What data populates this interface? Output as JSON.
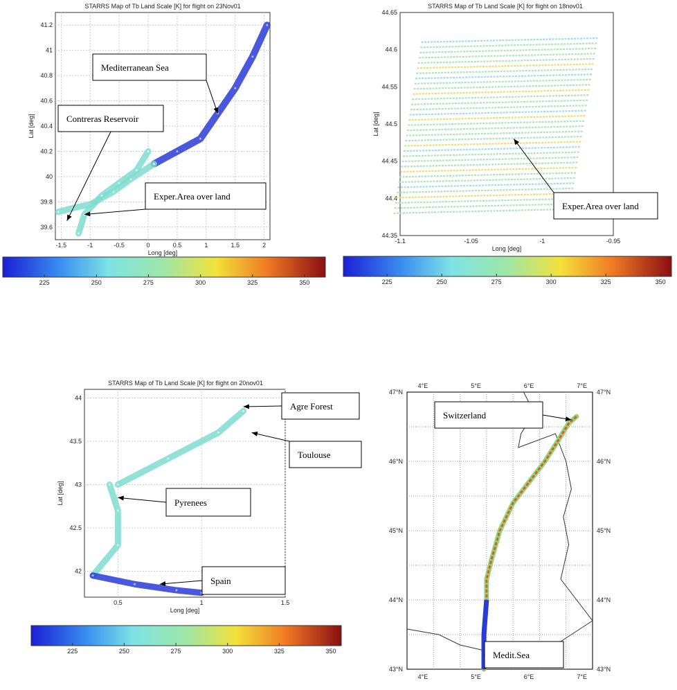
{
  "colors": {
    "cold": "#2a3bd8",
    "mid": "#7fdccf",
    "warm": "#f0d83a",
    "hot": "#d8382a"
  },
  "chart_data": [
    {
      "type": "scatter",
      "title": "STARRS Map of Tb Land Scale [K] for flight on 23Nov01",
      "xlabel": "Long [deg]",
      "ylabel": "Lat [deg]",
      "xlim": [
        -1.6,
        2.1
      ],
      "ylim": [
        39.5,
        41.3
      ],
      "xticks": [
        -1.5,
        -1,
        -0.5,
        0,
        0.5,
        1,
        1.5,
        2
      ],
      "yticks": [
        39.6,
        39.8,
        40,
        40.2,
        40.4,
        40.6,
        40.8,
        41,
        41.2
      ],
      "grid": true,
      "colorbar": {
        "min": 205,
        "max": 360,
        "ticks": [
          225,
          250,
          275,
          300,
          325,
          350
        ]
      },
      "series": [
        {
          "level": "cold",
          "points": [
            [
              0.1,
              40.1
            ],
            [
              0.5,
              40.2
            ],
            [
              0.9,
              40.3
            ],
            [
              1.2,
              40.5
            ],
            [
              1.5,
              40.7
            ],
            [
              1.8,
              40.95
            ],
            [
              2.05,
              41.2
            ]
          ]
        },
        {
          "level": "mid",
          "points": [
            [
              -1.55,
              39.72
            ],
            [
              -1.3,
              39.75
            ],
            [
              -1.0,
              39.78
            ],
            [
              -0.6,
              39.88
            ],
            [
              -0.3,
              39.98
            ],
            [
              0.1,
              40.1
            ]
          ]
        },
        {
          "level": "mid",
          "points": [
            [
              -1.2,
              39.55
            ],
            [
              -1.1,
              39.7
            ],
            [
              -0.8,
              39.85
            ],
            [
              -0.5,
              39.95
            ],
            [
              -0.2,
              40.05
            ],
            [
              0.0,
              40.2
            ]
          ]
        }
      ],
      "annotations": [
        {
          "text": "Mediterranean Sea",
          "target": [
            1.2,
            40.5
          ]
        },
        {
          "text": "Contreras Reservoir",
          "target": [
            -1.4,
            39.65
          ]
        },
        {
          "text": "Exper.Area over land",
          "target": [
            -1.1,
            39.7
          ]
        }
      ]
    },
    {
      "type": "scatter",
      "title": "STARRS Map of Tb Land Scale [K] for flight on 18nov01",
      "xlabel": "Long [deg]",
      "ylabel": "Lat [deg]",
      "xlim": [
        -1.1,
        -0.95
      ],
      "ylim": [
        44.35,
        44.65
      ],
      "xticks": [
        -1.1,
        -1.05,
        -1,
        -0.95
      ],
      "yticks": [
        44.35,
        44.4,
        44.45,
        44.5,
        44.55,
        44.6,
        44.65
      ],
      "grid": false,
      "colorbar": {
        "min": 205,
        "max": 355,
        "ticks": [
          225,
          250,
          275,
          300,
          325,
          350
        ]
      },
      "region": {
        "lon": [
          -1.09,
          -0.97
        ],
        "lat": [
          44.38,
          44.61
        ]
      },
      "annotations": [
        {
          "text": "Exper.Area over land",
          "target": [
            -1.02,
            44.48
          ]
        }
      ]
    },
    {
      "type": "scatter",
      "title": "STARRS Map of Tb Land Scale [K] for flight on 20nov01",
      "xlabel": "Long [deg]",
      "ylabel": "Lat [deg]",
      "xlim": [
        0.3,
        1.5
      ],
      "ylim": [
        41.7,
        44.1
      ],
      "xticks": [
        0.5,
        1,
        1.5
      ],
      "yticks": [
        42,
        42.5,
        43,
        43.5,
        44
      ],
      "grid": true,
      "colorbar": {
        "min": 205,
        "max": 355,
        "ticks": [
          225,
          250,
          275,
          300,
          325,
          350
        ]
      },
      "series": [
        {
          "level": "mid",
          "points": [
            [
              0.45,
              43.0
            ],
            [
              0.5,
              42.7
            ],
            [
              0.5,
              42.3
            ],
            [
              0.35,
              41.95
            ]
          ]
        },
        {
          "level": "mid",
          "points": [
            [
              0.5,
              43.0
            ],
            [
              0.8,
              43.3
            ],
            [
              1.1,
              43.6
            ],
            [
              1.25,
              43.85
            ]
          ]
        },
        {
          "level": "cold",
          "points": [
            [
              0.35,
              41.95
            ],
            [
              0.6,
              41.85
            ],
            [
              0.85,
              41.78
            ],
            [
              1.0,
              41.75
            ]
          ]
        }
      ],
      "annotations": [
        {
          "text": "Agre Forest",
          "target": [
            1.25,
            43.9
          ]
        },
        {
          "text": "Toulouse",
          "target": [
            1.3,
            43.6
          ]
        },
        {
          "text": "Pyrenees",
          "target": [
            0.5,
            42.85
          ]
        },
        {
          "text": "Spain",
          "target": [
            0.75,
            41.85
          ]
        }
      ]
    },
    {
      "type": "scatter",
      "title": "",
      "xlim": [
        4,
        7.5
      ],
      "ylim": [
        43,
        47
      ],
      "xticks_top": [
        "4°E",
        "5°E",
        "6°E",
        "7°E"
      ],
      "xticks_bottom": [
        "4°E",
        "5°E",
        "6°E",
        "7°E"
      ],
      "yticks_left": [
        "47°N",
        "46°N",
        "45°N",
        "44°N",
        "43°N"
      ],
      "yticks_right": [
        "47°N",
        "46°N",
        "45°N",
        "44°N",
        "43°N"
      ],
      "grid": true,
      "track": [
        [
          5.45,
          43.0
        ],
        [
          5.45,
          43.5
        ],
        [
          5.5,
          44.0
        ],
        [
          5.5,
          44.3
        ],
        [
          5.6,
          44.6
        ],
        [
          5.75,
          45.0
        ],
        [
          6.0,
          45.4
        ],
        [
          6.3,
          45.7
        ],
        [
          6.6,
          46.0
        ],
        [
          6.85,
          46.3
        ],
        [
          7.05,
          46.55
        ],
        [
          7.2,
          46.65
        ]
      ],
      "annotations": [
        {
          "text": "Switzerland",
          "target": [
            7.1,
            46.6
          ]
        },
        {
          "text": "Medit.Sea",
          "target": [
            5.45,
            43.2
          ]
        }
      ]
    }
  ]
}
